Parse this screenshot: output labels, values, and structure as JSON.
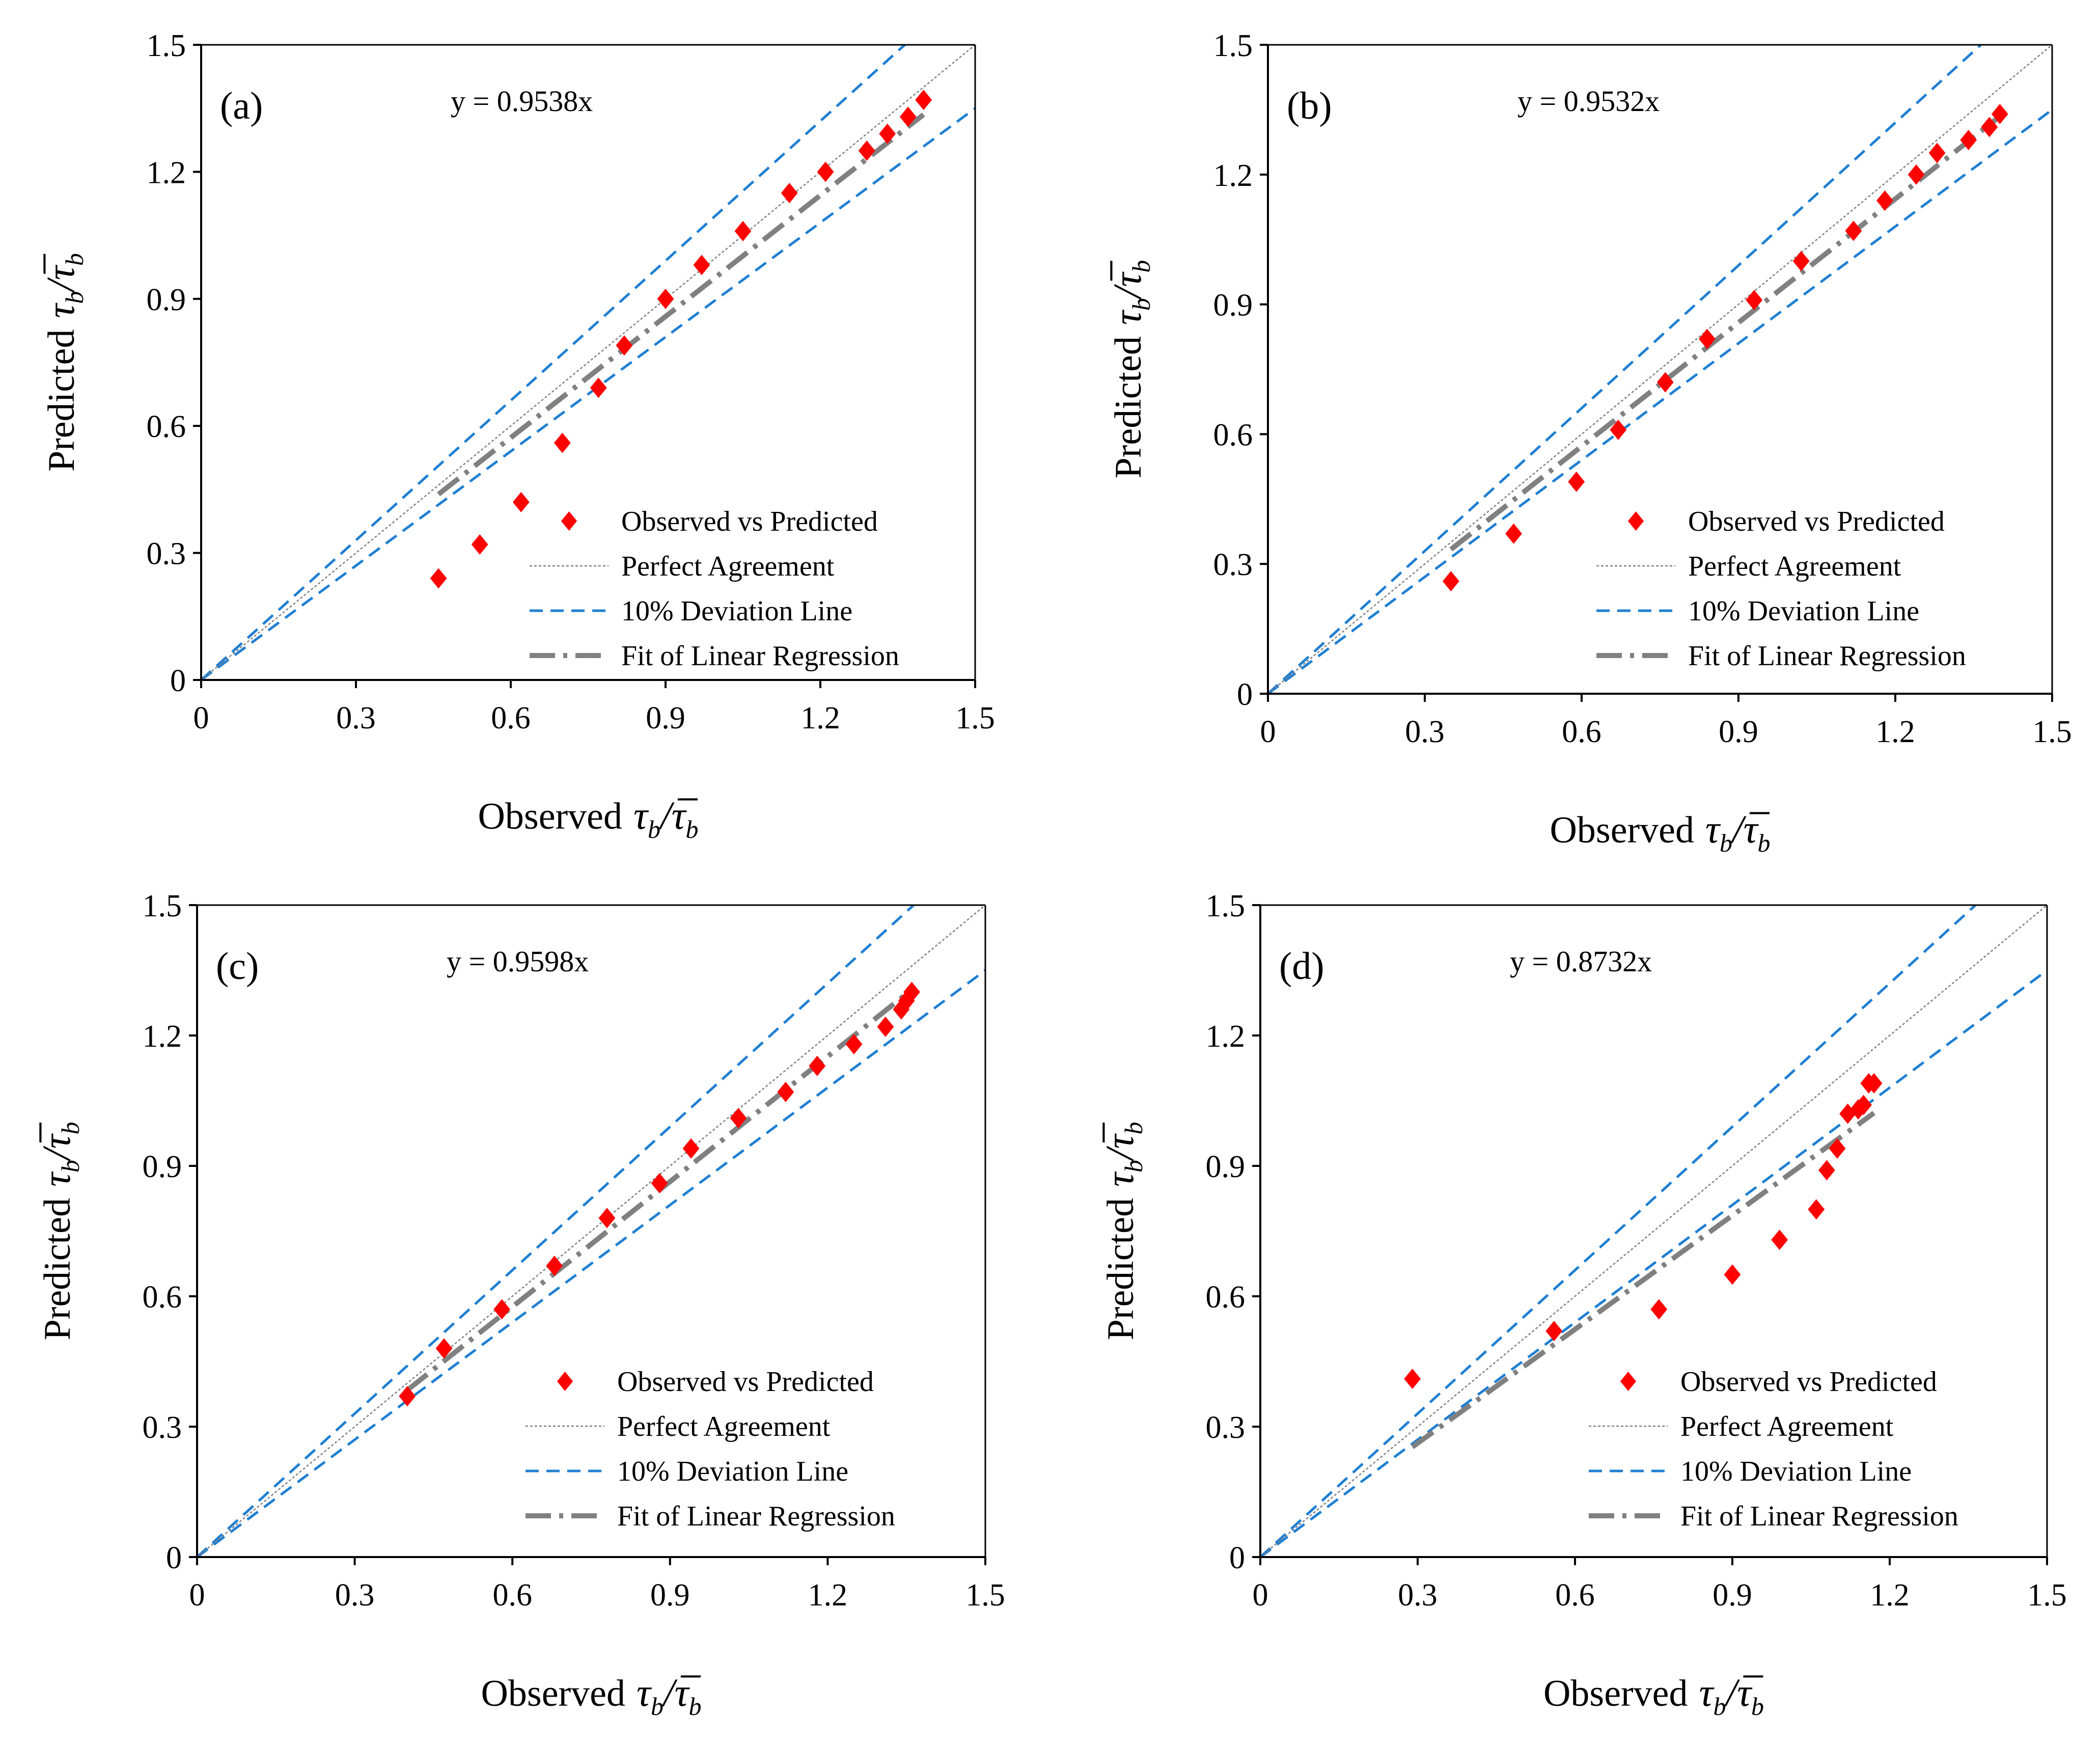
{
  "chart_data": [
    {
      "type": "scatter",
      "panel_label": "(a)",
      "equation": "y = 0.9538x",
      "slope": 0.9538,
      "fit_x_range": [
        0.46,
        1.4
      ],
      "xlim": [
        0,
        1.5
      ],
      "ylim": [
        0,
        1.5
      ],
      "ticks": [
        "0",
        "0.3",
        "0.6",
        "0.9",
        "1.2",
        "1.5"
      ],
      "xlabel": {
        "word": "Observed",
        "tau": "τ",
        "sub": "b",
        "slash": "/",
        "tau_bar": "τ̅",
        "sub2": "b"
      },
      "ylabel": {
        "word": "Predicted",
        "tau": "τ",
        "sub": "b",
        "slash": "/",
        "tau_bar": "τ̅",
        "sub2": "b"
      },
      "legend": [
        "Observed vs Predicted",
        "Perfect Agreement",
        "10% Deviation Line",
        "Fit of Linear Regression"
      ],
      "points": [
        {
          "x": 0.46,
          "y": 0.24
        },
        {
          "x": 0.54,
          "y": 0.32
        },
        {
          "x": 0.62,
          "y": 0.42
        },
        {
          "x": 0.7,
          "y": 0.56
        },
        {
          "x": 0.77,
          "y": 0.69
        },
        {
          "x": 0.82,
          "y": 0.79
        },
        {
          "x": 0.9,
          "y": 0.9
        },
        {
          "x": 0.97,
          "y": 0.98
        },
        {
          "x": 1.05,
          "y": 1.06
        },
        {
          "x": 1.14,
          "y": 1.15
        },
        {
          "x": 1.21,
          "y": 1.2
        },
        {
          "x": 1.29,
          "y": 1.25
        },
        {
          "x": 1.33,
          "y": 1.29
        },
        {
          "x": 1.37,
          "y": 1.33
        },
        {
          "x": 1.4,
          "y": 1.37
        }
      ]
    },
    {
      "type": "scatter",
      "panel_label": "(b)",
      "equation": "y = 0.9532x",
      "slope": 0.9532,
      "fit_x_range": [
        0.35,
        1.4
      ],
      "xlim": [
        0,
        1.5
      ],
      "ylim": [
        0,
        1.5
      ],
      "ticks": [
        "0",
        "0.3",
        "0.6",
        "0.9",
        "1.2",
        "1.5"
      ],
      "xlabel": {
        "word": "Observed",
        "tau": "τ",
        "sub": "b",
        "slash": "/",
        "tau_bar": "τ̅",
        "sub2": "b"
      },
      "ylabel": {
        "word": "Predicted",
        "tau": "τ",
        "sub": "b",
        "slash": "/",
        "tau_bar": "τ̅",
        "sub2": "b"
      },
      "legend": [
        "Observed vs Predicted",
        "Perfect Agreement",
        "10% Deviation Line",
        "Fit of Linear Regression"
      ],
      "points": [
        {
          "x": 0.35,
          "y": 0.26
        },
        {
          "x": 0.47,
          "y": 0.37
        },
        {
          "x": 0.59,
          "y": 0.49
        },
        {
          "x": 0.67,
          "y": 0.61
        },
        {
          "x": 0.76,
          "y": 0.72
        },
        {
          "x": 0.84,
          "y": 0.82
        },
        {
          "x": 0.93,
          "y": 0.91
        },
        {
          "x": 1.02,
          "y": 1.0
        },
        {
          "x": 1.12,
          "y": 1.07
        },
        {
          "x": 1.18,
          "y": 1.14
        },
        {
          "x": 1.24,
          "y": 1.2
        },
        {
          "x": 1.28,
          "y": 1.25
        },
        {
          "x": 1.34,
          "y": 1.28
        },
        {
          "x": 1.38,
          "y": 1.31
        },
        {
          "x": 1.4,
          "y": 1.34
        }
      ]
    },
    {
      "type": "scatter",
      "panel_label": "(c)",
      "equation": "y = 0.9598x",
      "slope": 0.9598,
      "fit_x_range": [
        0.4,
        1.36
      ],
      "xlim": [
        0,
        1.5
      ],
      "ylim": [
        0,
        1.5
      ],
      "ticks": [
        "0",
        "0.3",
        "0.6",
        "0.9",
        "1.2",
        "1.5"
      ],
      "xlabel": {
        "word": "Observed",
        "tau": "τ",
        "sub": "b",
        "slash": "/",
        "tau_bar": "τ̅",
        "sub2": "b"
      },
      "ylabel": {
        "word": "Predicted",
        "tau": "τ",
        "sub": "b",
        "slash": "/",
        "tau_bar": "τ̅",
        "sub2": "b"
      },
      "legend": [
        "Observed vs Predicted",
        "Perfect Agreement",
        "10% Deviation Line",
        "Fit of Linear Regression"
      ],
      "points": [
        {
          "x": 0.4,
          "y": 0.37
        },
        {
          "x": 0.47,
          "y": 0.48
        },
        {
          "x": 0.58,
          "y": 0.57
        },
        {
          "x": 0.68,
          "y": 0.67
        },
        {
          "x": 0.78,
          "y": 0.78
        },
        {
          "x": 0.88,
          "y": 0.86
        },
        {
          "x": 0.94,
          "y": 0.94
        },
        {
          "x": 1.03,
          "y": 1.01
        },
        {
          "x": 1.12,
          "y": 1.07
        },
        {
          "x": 1.18,
          "y": 1.13
        },
        {
          "x": 1.25,
          "y": 1.18
        },
        {
          "x": 1.31,
          "y": 1.22
        },
        {
          "x": 1.34,
          "y": 1.26
        },
        {
          "x": 1.35,
          "y": 1.28
        },
        {
          "x": 1.36,
          "y": 1.3
        }
      ]
    },
    {
      "type": "scatter",
      "panel_label": "(d)",
      "equation": "y = 0.8732x",
      "slope": 0.8732,
      "fit_x_range": [
        0.29,
        1.17
      ],
      "xlim": [
        0,
        1.5
      ],
      "ylim": [
        0,
        1.5
      ],
      "ticks": [
        "0",
        "0.3",
        "0.6",
        "0.9",
        "1.2",
        "1.5"
      ],
      "xlabel": {
        "word": "Observed",
        "tau": "τ",
        "sub": "b",
        "slash": "/",
        "tau_bar": "τ̅",
        "sub2": "b"
      },
      "ylabel": {
        "word": "Predicted",
        "tau": "τ",
        "sub": "b",
        "slash": "/",
        "tau_bar": "τ̅",
        "sub2": "b"
      },
      "legend": [
        "Observed vs Predicted",
        "Perfect Agreement",
        "10% Deviation Line",
        "Fit of Linear Regression"
      ],
      "points": [
        {
          "x": 0.29,
          "y": 0.41
        },
        {
          "x": 0.56,
          "y": 0.52
        },
        {
          "x": 0.76,
          "y": 0.57
        },
        {
          "x": 0.9,
          "y": 0.65
        },
        {
          "x": 0.99,
          "y": 0.73
        },
        {
          "x": 1.06,
          "y": 0.8
        },
        {
          "x": 1.08,
          "y": 0.89
        },
        {
          "x": 1.1,
          "y": 0.94
        },
        {
          "x": 1.12,
          "y": 1.02
        },
        {
          "x": 1.14,
          "y": 1.03
        },
        {
          "x": 1.15,
          "y": 1.04
        },
        {
          "x": 1.16,
          "y": 1.09
        },
        {
          "x": 1.17,
          "y": 1.09
        }
      ]
    }
  ],
  "colors": {
    "points": "#ff0000",
    "perfect": "#808080",
    "deviation": "#1f7fd2",
    "regression": "#808080",
    "axis": "#000000"
  }
}
